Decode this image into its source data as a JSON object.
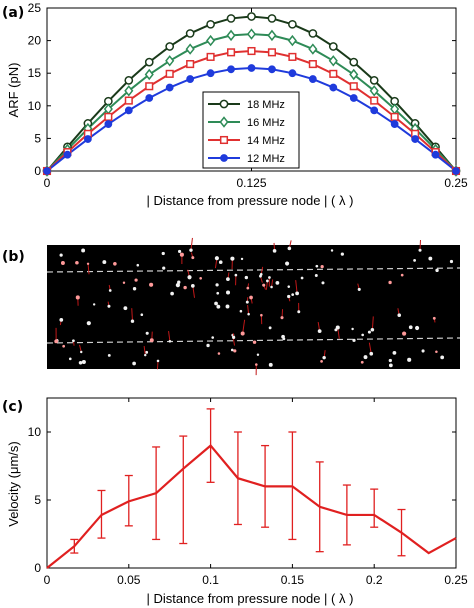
{
  "figure": {
    "panel_a_label": "(a)",
    "panel_b_label": "(b)",
    "panel_c_label": "(c)"
  },
  "chart_data": [
    {
      "panel": "(a)",
      "type": "line",
      "ylabel": "ARF (pN)",
      "xlabel": "| Distance from pressure node |  ( λ )",
      "xlim": [
        0,
        0.25
      ],
      "ylim": [
        0,
        25
      ],
      "xticks": [
        0,
        0.125,
        0.25
      ],
      "xtick_labels": [
        "0",
        "0.125",
        "0.25"
      ],
      "yticks": [
        0,
        5,
        10,
        15,
        20,
        25
      ],
      "ytick_labels": [
        "0",
        "5",
        "10",
        "15",
        "20",
        "25"
      ],
      "legend": "inside-center",
      "x": [
        0,
        0.0125,
        0.025,
        0.0375,
        0.05,
        0.0625,
        0.075,
        0.0875,
        0.1,
        0.1125,
        0.125,
        0.1375,
        0.15,
        0.1625,
        0.175,
        0.1875,
        0.2,
        0.2125,
        0.225,
        0.2375,
        0.25
      ],
      "series": [
        {
          "name": "18 MHz",
          "color": "#1a3a1a",
          "marker": "open-circle",
          "values": [
            0,
            3.7,
            7.3,
            10.7,
            13.9,
            16.7,
            19.1,
            21.1,
            22.5,
            23.4,
            23.7,
            23.4,
            22.5,
            21.1,
            19.1,
            16.7,
            13.9,
            10.7,
            7.3,
            3.7,
            0
          ]
        },
        {
          "name": "16 MHz",
          "color": "#2e8b57",
          "marker": "open-diamond",
          "values": [
            0,
            3.3,
            6.5,
            9.5,
            12.3,
            14.8,
            16.9,
            18.7,
            20.0,
            20.8,
            21.0,
            20.8,
            20.0,
            18.7,
            16.9,
            14.8,
            12.3,
            9.5,
            6.5,
            3.3,
            0
          ]
        },
        {
          "name": "14 MHz",
          "color": "#e03030",
          "marker": "open-square",
          "values": [
            0,
            2.9,
            5.7,
            8.3,
            10.8,
            13.0,
            14.9,
            16.4,
            17.5,
            18.2,
            18.4,
            18.2,
            17.5,
            16.4,
            14.9,
            13.0,
            10.8,
            8.3,
            5.7,
            2.9,
            0
          ]
        },
        {
          "name": "12 MHz",
          "color": "#1f3bdc",
          "marker": "filled-circle",
          "values": [
            0,
            2.5,
            4.9,
            7.2,
            9.3,
            11.2,
            12.8,
            14.1,
            15.0,
            15.6,
            15.8,
            15.6,
            15.0,
            14.1,
            12.8,
            11.2,
            9.3,
            7.2,
            4.9,
            2.5,
            0
          ]
        }
      ]
    },
    {
      "panel": "(c)",
      "type": "line",
      "ylabel": "Velocity (μm/s)",
      "xlabel": "| Distance from pressure node |  ( λ )",
      "xlim": [
        0,
        0.25
      ],
      "ylim": [
        0,
        12.5
      ],
      "xticks": [
        0,
        0.05,
        0.1,
        0.15,
        0.2,
        0.25
      ],
      "xtick_labels": [
        "0",
        "0.05",
        "0.1",
        "0.15",
        "0.2",
        "0.25"
      ],
      "yticks": [
        0,
        5,
        10
      ],
      "ytick_labels": [
        "0",
        "5",
        "10"
      ],
      "color": "#e02020",
      "x": [
        0,
        0.0167,
        0.0333,
        0.05,
        0.0667,
        0.0833,
        0.1,
        0.1167,
        0.1333,
        0.15,
        0.1667,
        0.1833,
        0.2,
        0.2167,
        0.2333,
        0.25
      ],
      "values": [
        0,
        1.6,
        3.9,
        4.9,
        5.5,
        7.3,
        9.0,
        6.6,
        6.0,
        6.0,
        4.5,
        3.9,
        3.9,
        2.6,
        1.1,
        2.2
      ],
      "error_low": [
        null,
        1.1,
        2.2,
        3.1,
        2.1,
        1.8,
        6.3,
        3.2,
        3.0,
        2.1,
        1.2,
        1.7,
        3.0,
        0.9,
        null,
        null
      ],
      "error_high": [
        null,
        2.1,
        5.7,
        6.8,
        8.9,
        9.7,
        11.7,
        10.0,
        9.0,
        10.0,
        7.8,
        6.1,
        5.8,
        4.3,
        null,
        null
      ]
    }
  ]
}
